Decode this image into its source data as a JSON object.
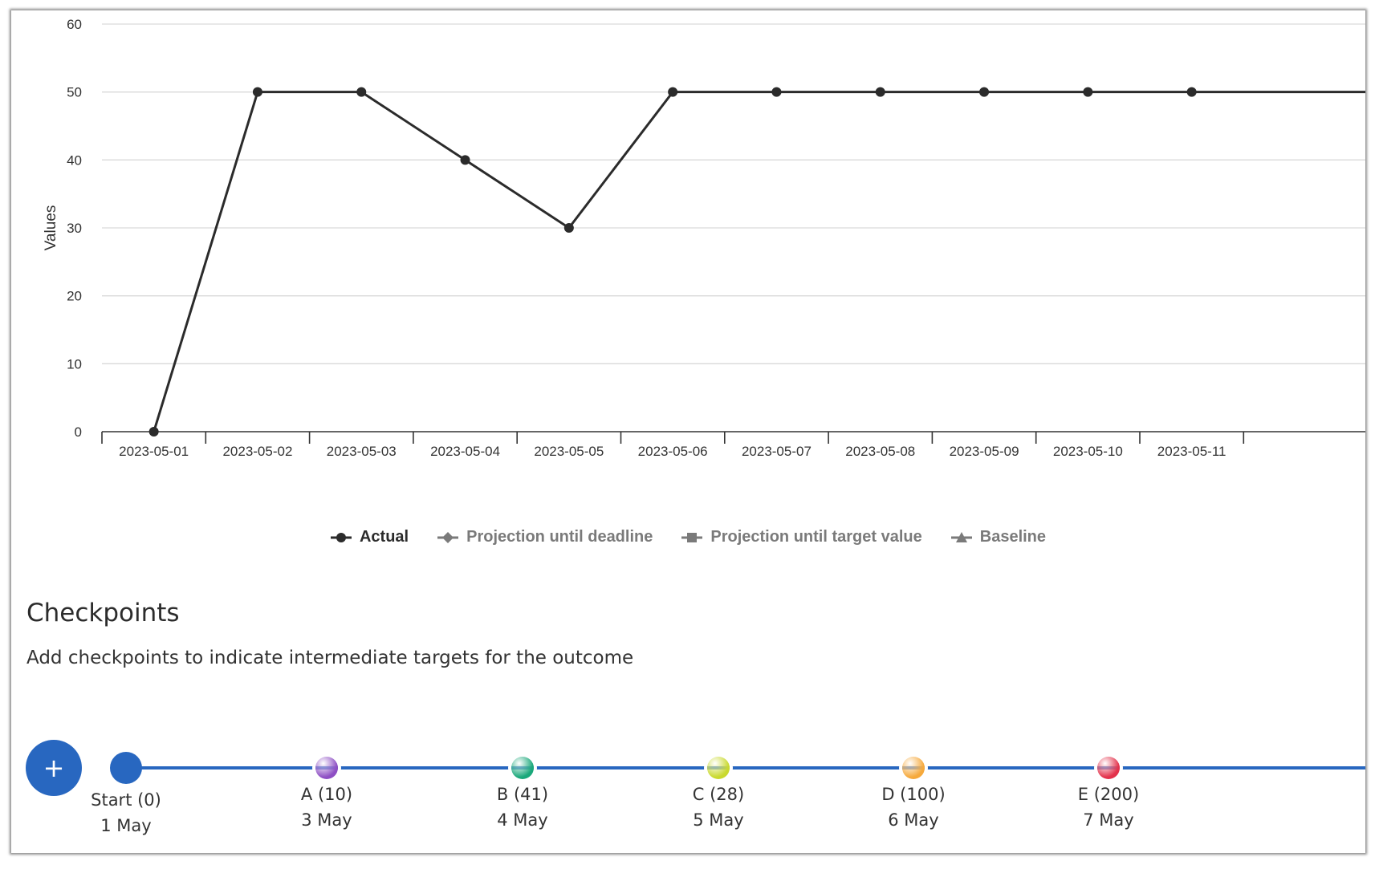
{
  "chart_data": {
    "type": "line",
    "x": [
      "2023-05-01",
      "2023-05-02",
      "2023-05-03",
      "2023-05-04",
      "2023-05-05",
      "2023-05-06",
      "2023-05-07",
      "2023-05-08",
      "2023-05-09",
      "2023-05-10",
      "2023-05-11"
    ],
    "series": [
      {
        "name": "Actual",
        "values": [
          0,
          50,
          50,
          40,
          30,
          50,
          50,
          50,
          50,
          50,
          50
        ],
        "color": "#2b2b2b"
      }
    ],
    "ylabel": "Values",
    "xlabel": "",
    "ylim": [
      0,
      60
    ],
    "yticks": [
      0,
      10,
      20,
      30,
      40,
      50,
      60
    ],
    "grid": true,
    "legend": {
      "placement": "bottom-center",
      "items": [
        {
          "name": "Actual",
          "symbol": "circle",
          "active": true
        },
        {
          "name": "Projection until deadline",
          "symbol": "diamond",
          "active": false
        },
        {
          "name": "Projection until target value",
          "symbol": "square",
          "active": false
        },
        {
          "name": "Baseline",
          "symbol": "triangle",
          "active": false
        }
      ]
    }
  },
  "checkpoints": {
    "title": "Checkpoints",
    "description": "Add checkpoints to indicate intermediate targets for the outcome",
    "add_button_label": "+",
    "accent_color": "#2867c0",
    "items": [
      {
        "label": "Start (0)",
        "date": "1 May",
        "color": "#2867c0",
        "kind": "start"
      },
      {
        "label": "A (10)",
        "date": "3 May",
        "color": "#8e4fc4"
      },
      {
        "label": "B (41)",
        "date": "4 May",
        "color": "#1aa87a"
      },
      {
        "label": "C (28)",
        "date": "5 May",
        "color": "#c9d92e"
      },
      {
        "label": "D (100)",
        "date": "6 May",
        "color": "#f6a93b"
      },
      {
        "label": "E (200)",
        "date": "7 May",
        "color": "#e3324b"
      }
    ]
  }
}
